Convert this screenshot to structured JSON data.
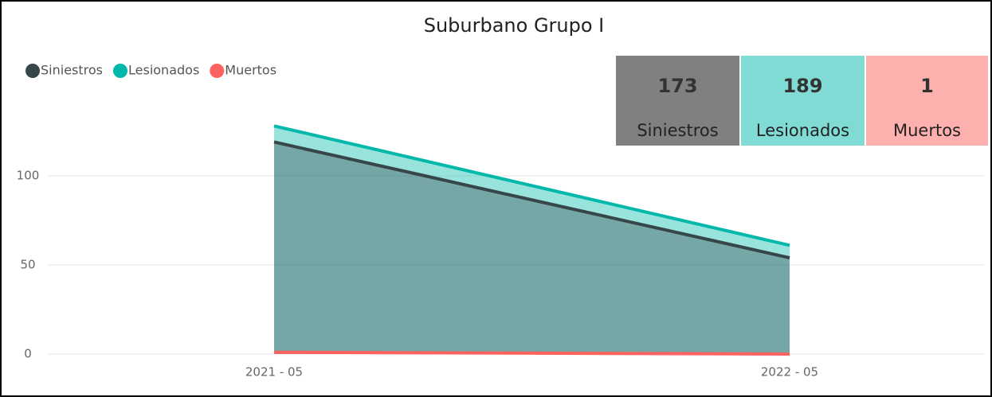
{
  "chart_data": {
    "type": "area",
    "title": "Suburbano Grupo I",
    "categories": [
      "2021 - 05",
      "2022 - 05"
    ],
    "series": [
      {
        "name": "Lesionados",
        "color": "#01B8AA",
        "values": [
          128,
          61
        ]
      },
      {
        "name": "Siniestros",
        "color": "#374649",
        "values": [
          119,
          54
        ]
      },
      {
        "name": "Muertos",
        "color": "#FD625E",
        "values": [
          1,
          0
        ]
      }
    ],
    "legend_order": [
      "Siniestros",
      "Lesionados",
      "Muertos"
    ],
    "ylim": [
      0,
      150
    ],
    "yticks": [
      0,
      50,
      100
    ],
    "grid": true,
    "cards": [
      {
        "value": "173",
        "label": "Siniestros",
        "color": "#808080"
      },
      {
        "value": "189",
        "label": "Lesionados",
        "color": "#80DBD4"
      },
      {
        "value": "1",
        "label": "Muertos",
        "color": "#FDB0AE"
      }
    ]
  }
}
